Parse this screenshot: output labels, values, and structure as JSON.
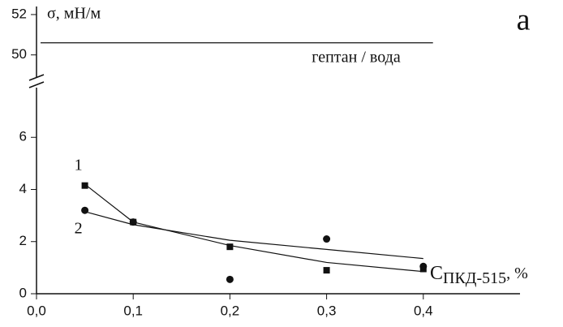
{
  "chart_data": {
    "type": "scatter",
    "y_label": "σ, мН/м",
    "panel_label": "а",
    "x_label": {
      "symbol": "C",
      "subscript": "ПКД-515",
      "unit": ", %"
    },
    "xlim": [
      0,
      0.5
    ],
    "xticks": [
      {
        "value": 0,
        "label": "0,0"
      },
      {
        "value": 0.1,
        "label": "0,1"
      },
      {
        "value": 0.2,
        "label": "0,2"
      },
      {
        "value": 0.3,
        "label": "0,3"
      },
      {
        "value": 0.4,
        "label": "0,4"
      }
    ],
    "ylim": [
      0,
      8
    ],
    "yticks": [
      0,
      2,
      4,
      6
    ],
    "y_upper": {
      "ylim": [
        48.7,
        52.4
      ],
      "yticks": [
        50,
        52
      ]
    },
    "reference": {
      "value": 50.6,
      "label": "гептан / вода",
      "x_end": 0.41
    },
    "series": [
      {
        "name": "1",
        "marker": "square",
        "color": "#111111",
        "x": [
          0.05,
          0.1,
          0.2,
          0.3,
          0.4
        ],
        "values": [
          4.15,
          2.75,
          1.8,
          0.9,
          0.95
        ],
        "fit_x": [
          0.05,
          0.1,
          0.2,
          0.3,
          0.4
        ],
        "fit_values": [
          4.2,
          2.75,
          1.85,
          1.2,
          0.85
        ]
      },
      {
        "name": "2",
        "marker": "circle",
        "color": "#111111",
        "x": [
          0.05,
          0.1,
          0.2,
          0.3,
          0.4
        ],
        "values": [
          3.2,
          2.75,
          0.55,
          2.1,
          1.05
        ],
        "fit_x": [
          0.05,
          0.1,
          0.2,
          0.3,
          0.4
        ],
        "fit_values": [
          3.15,
          2.65,
          2.05,
          1.7,
          1.35
        ]
      }
    ]
  }
}
